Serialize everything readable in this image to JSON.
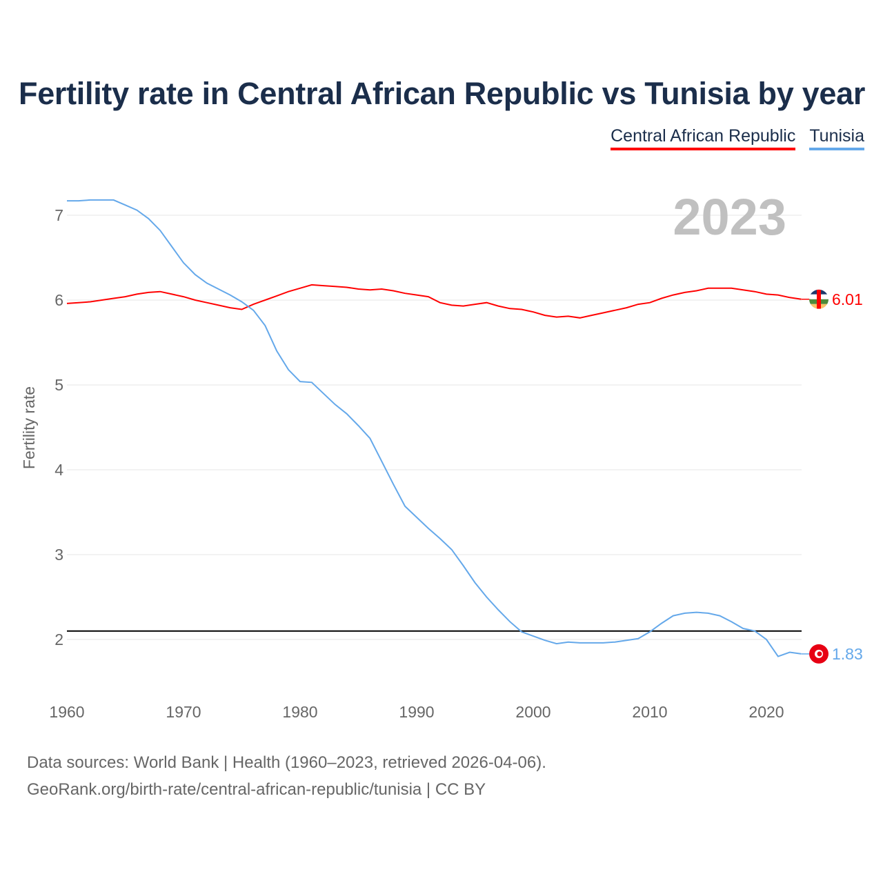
{
  "chart_data": {
    "type": "line",
    "title": "Fertility rate in Central African Republic vs Tunisia by year",
    "xlabel": "",
    "ylabel": "Fertility rate",
    "xlim": [
      1960,
      2023
    ],
    "ylim": [
      1.5,
      7.3
    ],
    "x_ticks": [
      1960,
      1970,
      1980,
      1990,
      2000,
      2010,
      2020
    ],
    "y_ticks": [
      2,
      3,
      4,
      5,
      6,
      7
    ],
    "grid": true,
    "legend_position": "top-right",
    "year_label": "2023",
    "reference_line": 2.1,
    "x": [
      1960,
      1961,
      1962,
      1963,
      1964,
      1965,
      1966,
      1967,
      1968,
      1969,
      1970,
      1971,
      1972,
      1973,
      1974,
      1975,
      1976,
      1977,
      1978,
      1979,
      1980,
      1981,
      1982,
      1983,
      1984,
      1985,
      1986,
      1987,
      1988,
      1989,
      1990,
      1991,
      1992,
      1993,
      1994,
      1995,
      1996,
      1997,
      1998,
      1999,
      2000,
      2001,
      2002,
      2003,
      2004,
      2005,
      2006,
      2007,
      2008,
      2009,
      2010,
      2011,
      2012,
      2013,
      2014,
      2015,
      2016,
      2017,
      2018,
      2019,
      2020,
      2021,
      2022,
      2023
    ],
    "series": [
      {
        "name": "Central African Republic",
        "color": "#ff0000",
        "end_label": "6.01",
        "values": [
          5.96,
          5.97,
          5.98,
          6.0,
          6.02,
          6.04,
          6.07,
          6.09,
          6.1,
          6.07,
          6.04,
          6.0,
          5.97,
          5.94,
          5.91,
          5.89,
          5.95,
          6.0,
          6.05,
          6.1,
          6.14,
          6.18,
          6.17,
          6.16,
          6.15,
          6.13,
          6.12,
          6.13,
          6.11,
          6.08,
          6.06,
          6.04,
          5.97,
          5.94,
          5.93,
          5.95,
          5.97,
          5.93,
          5.9,
          5.89,
          5.86,
          5.82,
          5.8,
          5.81,
          5.79,
          5.82,
          5.85,
          5.88,
          5.91,
          5.95,
          5.97,
          6.02,
          6.06,
          6.09,
          6.11,
          6.14,
          6.14,
          6.14,
          6.12,
          6.1,
          6.07,
          6.06,
          6.03,
          6.01
        ]
      },
      {
        "name": "Tunisia",
        "color": "#64a8ea",
        "end_label": "1.83",
        "values": [
          7.17,
          7.17,
          7.18,
          7.18,
          7.18,
          7.12,
          7.06,
          6.96,
          6.82,
          6.63,
          6.44,
          6.3,
          6.2,
          6.13,
          6.06,
          5.98,
          5.88,
          5.7,
          5.4,
          5.18,
          5.04,
          5.03,
          4.9,
          4.77,
          4.66,
          4.52,
          4.37,
          4.1,
          3.83,
          3.57,
          3.44,
          3.31,
          3.19,
          3.06,
          2.87,
          2.67,
          2.5,
          2.35,
          2.21,
          2.09,
          2.04,
          1.99,
          1.95,
          1.97,
          1.96,
          1.96,
          1.96,
          1.97,
          1.99,
          2.01,
          2.09,
          2.19,
          2.28,
          2.31,
          2.32,
          2.31,
          2.28,
          2.21,
          2.13,
          2.1,
          2.0,
          1.8,
          1.85,
          1.83
        ]
      }
    ]
  },
  "footer": {
    "line1": "Data sources: World Bank | Health (1960–2023, retrieved 2026-04-06).",
    "line2": "GeoRank.org/birth-rate/central-african-republic/tunisia | CC BY"
  }
}
